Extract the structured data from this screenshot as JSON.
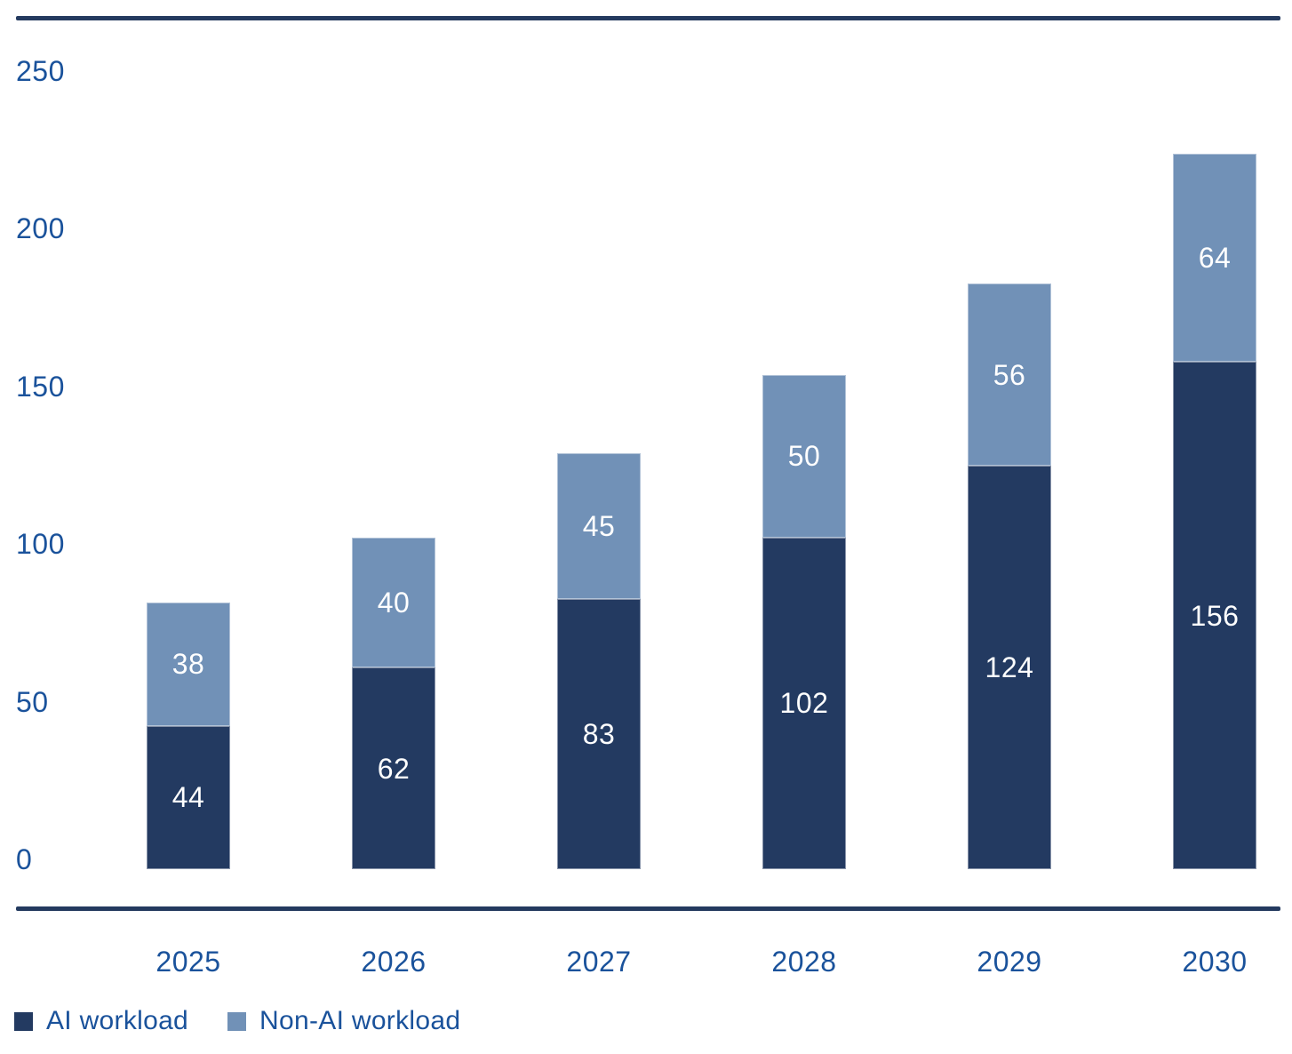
{
  "chart_data": {
    "type": "bar",
    "stacked": true,
    "title": "",
    "xlabel": "",
    "ylabel": "",
    "categories": [
      "2025",
      "2026",
      "2027",
      "2028",
      "2029",
      "2030"
    ],
    "series": [
      {
        "name": "AI workload",
        "color": "#233A61",
        "values": [
          44,
          62,
          83,
          102,
          124,
          156
        ]
      },
      {
        "name": "Non-AI workload",
        "color": "#7191B7",
        "values": [
          38,
          40,
          45,
          50,
          56,
          64
        ]
      }
    ],
    "stack_totals": [
      82,
      102,
      128,
      152,
      180,
      220
    ],
    "ylim": [
      0,
      250
    ],
    "yticks": [
      0,
      50,
      100,
      150,
      200,
      250
    ],
    "grid": false,
    "legend_position": "bottom-left",
    "value_labels": "inside-segment-white"
  },
  "legend": {
    "items": [
      {
        "label": "AI workload",
        "color": "#233A61"
      },
      {
        "label": "Non-AI workload",
        "color": "#7191B7"
      }
    ]
  },
  "colors": {
    "background": "#FFFFFF",
    "axis_text": "#1A529B",
    "bar_value_text": "#FFFFFF",
    "border_rule": "#243A5F",
    "series_ai": "#233A61",
    "series_non_ai": "#7191B7"
  }
}
